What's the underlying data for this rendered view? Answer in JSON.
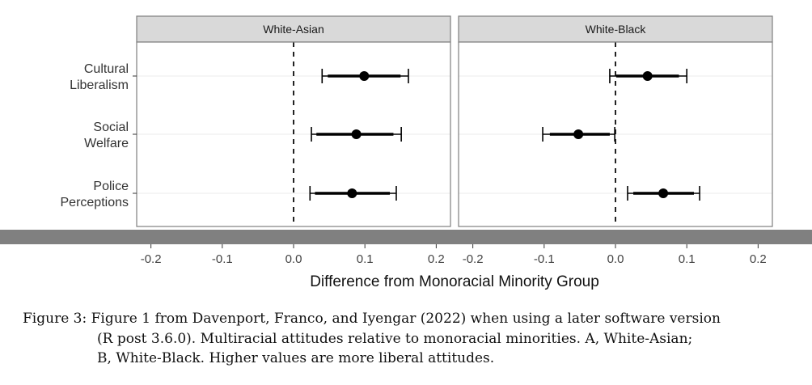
{
  "chart_data": {
    "type": "scatter",
    "subtype": "coefficient-plot-with-intervals",
    "xlabel": "Difference from Monoracial Minority Group",
    "xlim": [
      -0.22,
      0.22
    ],
    "x_ticks": [
      "-0.2",
      "-0.1",
      "0.0",
      "0.1",
      "0.2"
    ],
    "x_tick_values": [
      -0.2,
      -0.1,
      0.0,
      0.1,
      0.2
    ],
    "reference_line": 0.0,
    "categories": [
      [
        "Cultural",
        "Liberalism"
      ],
      [
        "Social",
        "Welfare"
      ],
      [
        "Police",
        "Perceptions"
      ]
    ],
    "panels": [
      {
        "name": "White-Asian",
        "points": [
          {
            "estimate": 0.099,
            "inner": [
              0.048,
              0.15
            ],
            "outer": [
              0.04,
              0.161
            ]
          },
          {
            "estimate": 0.088,
            "inner": [
              0.032,
              0.14
            ],
            "outer": [
              0.025,
              0.151
            ]
          },
          {
            "estimate": 0.082,
            "inner": [
              0.03,
              0.135
            ],
            "outer": [
              0.023,
              0.144
            ]
          }
        ]
      },
      {
        "name": "White-Black",
        "points": [
          {
            "estimate": 0.045,
            "inner": [
              0.001,
              0.089
            ],
            "outer": [
              -0.008,
              0.1
            ]
          },
          {
            "estimate": -0.052,
            "inner": [
              -0.092,
              -0.008
            ],
            "outer": [
              -0.102,
              -0.001
            ]
          },
          {
            "estimate": 0.067,
            "inner": [
              0.025,
              0.11
            ],
            "outer": [
              0.017,
              0.118
            ]
          }
        ]
      }
    ],
    "grid": true
  },
  "caption": {
    "label": "Figure 3:",
    "line1": "Figure 1 from Davenport, Franco, and Iyengar (2022) when using a later software version",
    "line2": "(R post 3.6.0).  Multiracial attitudes relative to monoracial minorities.  A, White-Asian;",
    "line3": "B, White-Black. Higher values are more liberal attitudes."
  },
  "colors": {
    "strip_fill": "#d9d9d9",
    "panel_border": "#7f7f7f",
    "grid": "#ebebeb",
    "point": "#000000",
    "overlay_bar": "#808080"
  }
}
